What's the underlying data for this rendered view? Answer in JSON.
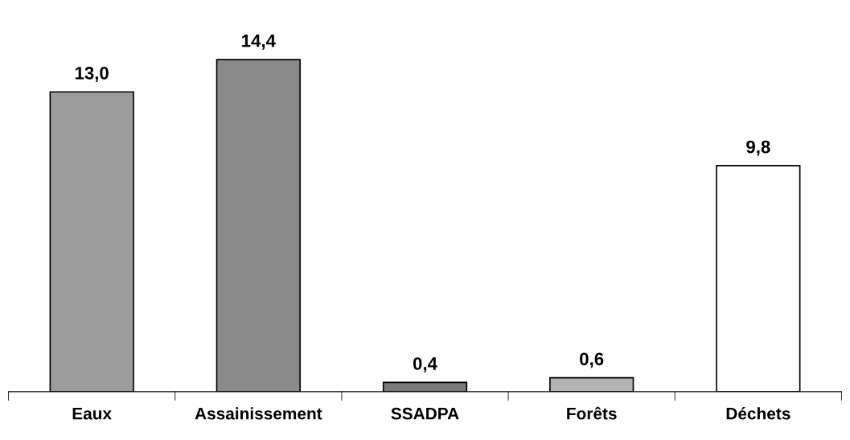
{
  "chart_data": {
    "type": "bar",
    "categories": [
      "Eaux",
      "Assainissement",
      "SSADPA",
      "Forêts",
      "Déchets"
    ],
    "values": [
      13.0,
      14.4,
      0.4,
      0.6,
      9.8
    ],
    "value_labels": [
      "13,0",
      "14,4",
      "0,4",
      "0,6",
      "9,8"
    ],
    "colors": [
      "#9c9c9c",
      "#8a8a8a",
      "#7a7a7a",
      "#b4b4b4",
      "#ffffff"
    ],
    "grid": false,
    "legend": false
  }
}
